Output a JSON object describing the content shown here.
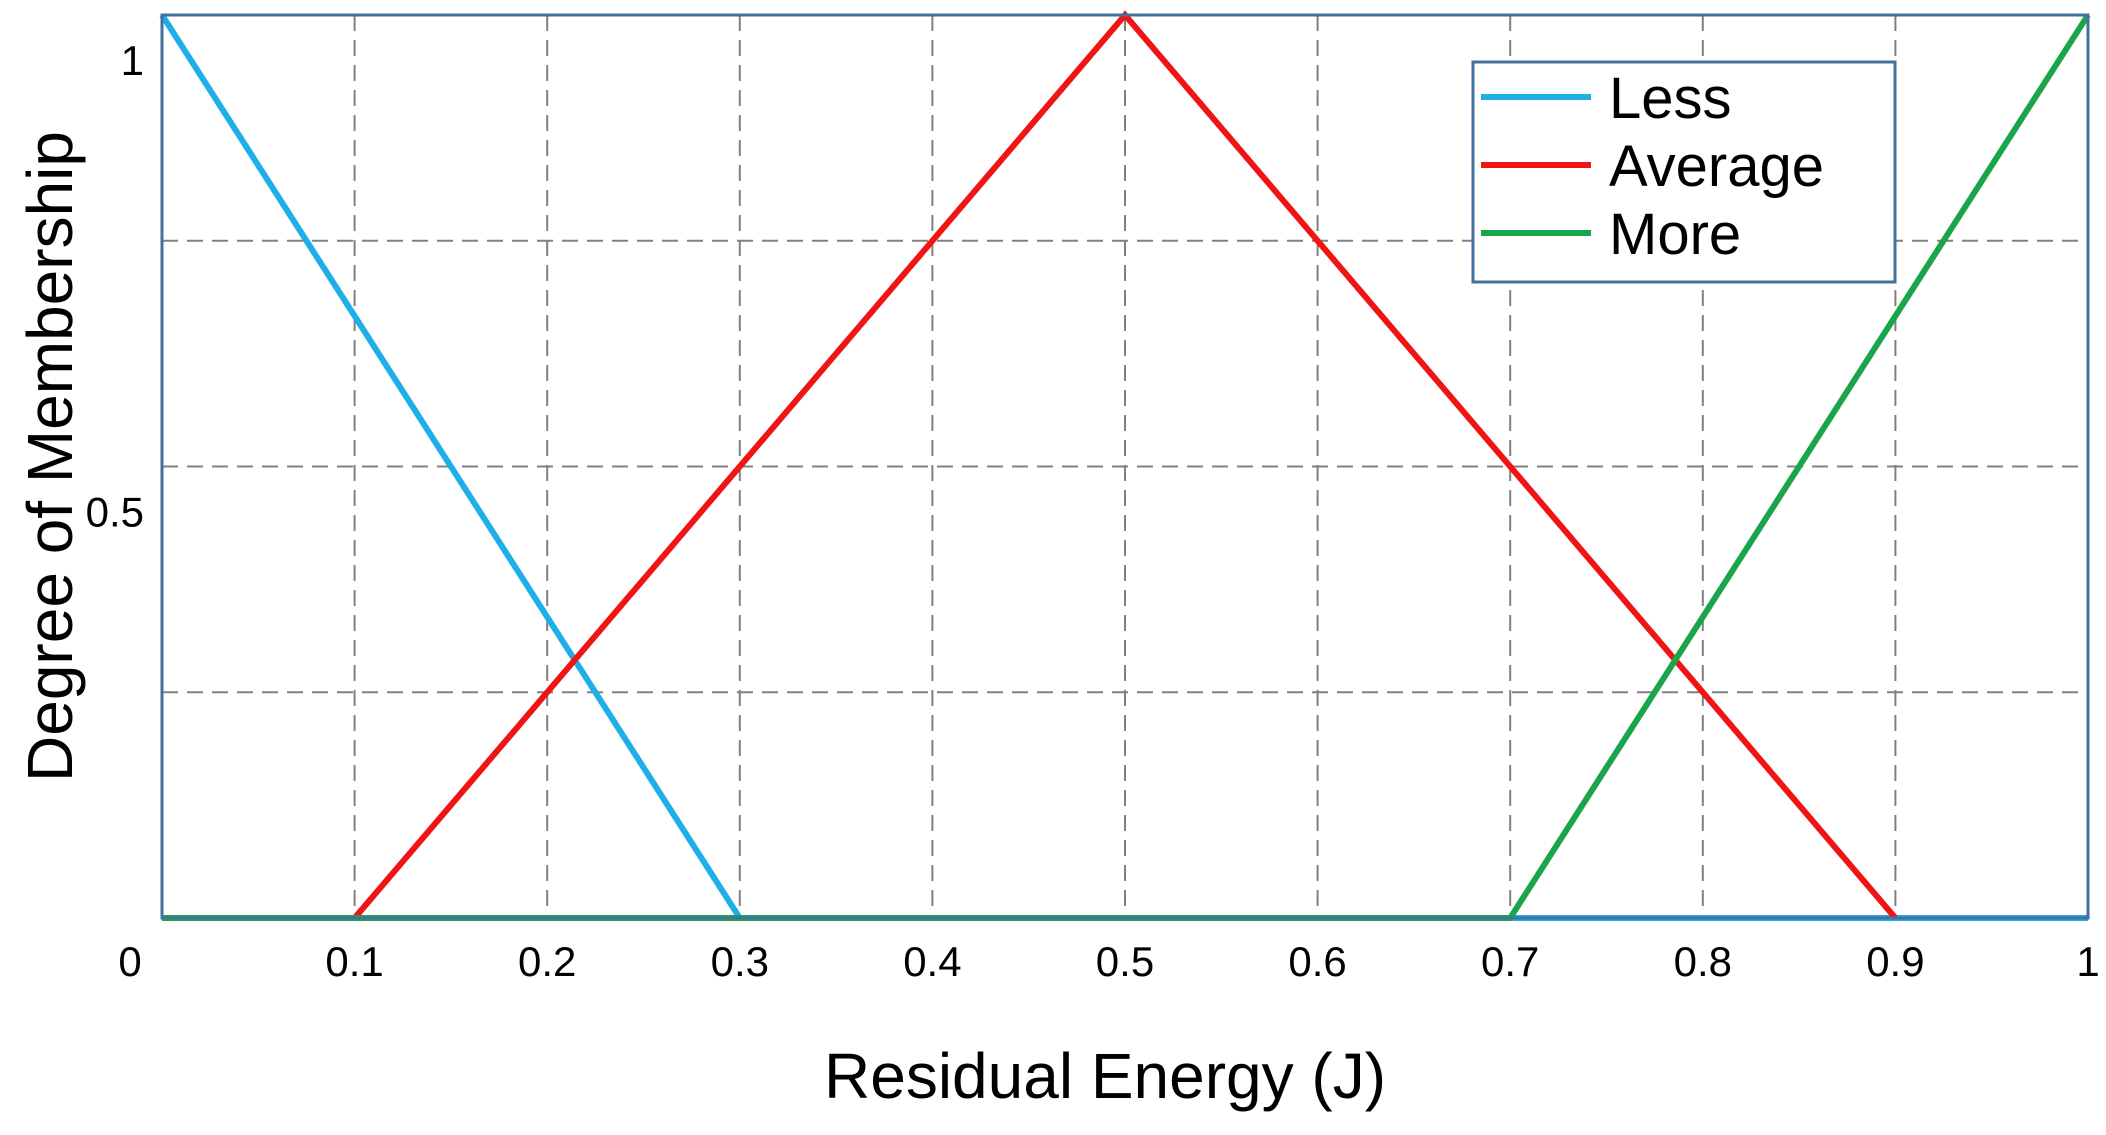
{
  "chart_data": {
    "type": "line",
    "title": "",
    "xlabel": "Residual Energy (J)",
    "ylabel": "Degree of Membership",
    "xlim": [
      0,
      1
    ],
    "ylim": [
      0,
      1
    ],
    "grid": true,
    "x_ticks": [
      0,
      0.1,
      0.2,
      0.3,
      0.4,
      0.5,
      0.6,
      0.7,
      0.8,
      0.9,
      1
    ],
    "x_tick_labels": [
      "0",
      "0.1",
      "0.2",
      "0.3",
      "0.4",
      "0.5",
      "0.6",
      "0.7",
      "0.8",
      "0.9",
      "1"
    ],
    "y_ticks": [
      0.5,
      1
    ],
    "y_tick_labels": [
      "0.5",
      "1"
    ],
    "y_grid": [
      0.25,
      0.5,
      0.75,
      1
    ],
    "legend_position": "top-right",
    "series": [
      {
        "name": "Less",
        "color": "#1eaee8",
        "x": [
          0,
          0.3,
          1
        ],
        "y": [
          1,
          0,
          0
        ]
      },
      {
        "name": "Average",
        "color": "#f01414",
        "x": [
          0.1,
          0.5,
          0.9
        ],
        "y": [
          0,
          1,
          0
        ]
      },
      {
        "name": "More",
        "color": "#1aa54b",
        "x": [
          0,
          0.7,
          1
        ],
        "y": [
          0,
          0,
          1
        ]
      }
    ]
  }
}
